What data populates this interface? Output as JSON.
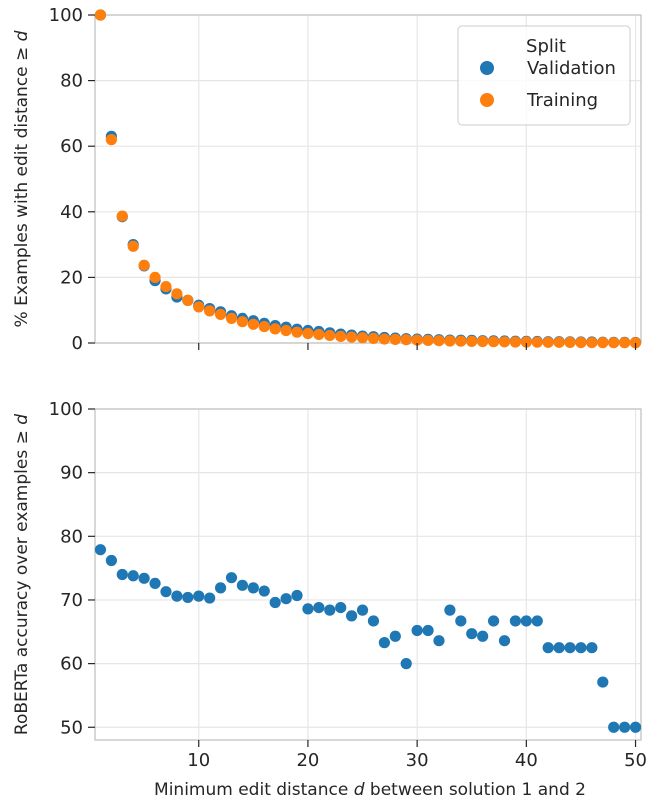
{
  "chart_data": [
    {
      "type": "scatter",
      "ylabel": "% Examples with edit distance  ≥ d",
      "xlim": [
        0.5,
        50.5
      ],
      "ylim": [
        0,
        100
      ],
      "yticks": [
        0,
        20,
        40,
        60,
        80,
        100
      ],
      "xticks": [
        10,
        20,
        30,
        40,
        50
      ],
      "grid": true,
      "legend": {
        "title": "Split",
        "placement": "top-right",
        "entries": [
          "Validation",
          "Training"
        ]
      },
      "series": [
        {
          "name": "Validation",
          "color": "#1f77b4",
          "x": [
            1,
            2,
            3,
            4,
            5,
            6,
            7,
            8,
            9,
            10,
            11,
            12,
            13,
            14,
            15,
            16,
            17,
            18,
            19,
            20,
            21,
            22,
            23,
            24,
            25,
            26,
            27,
            28,
            29,
            30,
            31,
            32,
            33,
            34,
            35,
            36,
            37,
            38,
            39,
            40,
            41,
            42,
            43,
            44,
            45,
            46,
            47,
            48,
            49,
            50
          ],
          "y": [
            100,
            63,
            38.5,
            30,
            23.5,
            19,
            16.5,
            14,
            13,
            11.5,
            10.5,
            9.5,
            8.3,
            7.5,
            6.8,
            6,
            5.3,
            4.8,
            4.2,
            3.8,
            3.5,
            3.1,
            2.7,
            2.4,
            2.1,
            1.9,
            1.7,
            1.5,
            1.3,
            1.2,
            1.1,
            1.0,
            0.9,
            0.85,
            0.8,
            0.7,
            0.65,
            0.6,
            0.55,
            0.5,
            0.45,
            0.4,
            0.4,
            0.35,
            0.3,
            0.3,
            0.25,
            0.2,
            0.2,
            0.15
          ]
        },
        {
          "name": "Training",
          "color": "#ff7f0e",
          "x": [
            1,
            2,
            3,
            4,
            5,
            6,
            7,
            8,
            9,
            10,
            11,
            12,
            13,
            14,
            15,
            16,
            17,
            18,
            19,
            20,
            21,
            22,
            23,
            24,
            25,
            26,
            27,
            28,
            29,
            30,
            31,
            32,
            33,
            34,
            35,
            36,
            37,
            38,
            39,
            40,
            41,
            42,
            43,
            44,
            45,
            46,
            47,
            48,
            49,
            50
          ],
          "y": [
            100,
            62,
            38.7,
            29.5,
            23.7,
            20,
            17.2,
            15,
            13,
            11,
            9.8,
            8.7,
            7.5,
            6.5,
            5.7,
            5,
            4.3,
            3.8,
            3.3,
            2.9,
            2.6,
            2.3,
            2.0,
            1.8,
            1.6,
            1.4,
            1.2,
            1.1,
            1.0,
            0.9,
            0.8,
            0.7,
            0.6,
            0.55,
            0.5,
            0.45,
            0.4,
            0.35,
            0.3,
            0.3,
            0.25,
            0.2,
            0.2,
            0.18,
            0.15,
            0.13,
            0.12,
            0.1,
            0.1,
            0.08
          ]
        }
      ]
    },
    {
      "type": "scatter",
      "xlabel": "Minimum edit distance d between solution 1 and 2",
      "ylabel": "RoBERTa accuracy over examples  ≥ d",
      "xlim": [
        0.5,
        50.5
      ],
      "ylim": [
        48,
        100
      ],
      "yticks": [
        50,
        60,
        70,
        80,
        90,
        100
      ],
      "xticks": [
        10,
        20,
        30,
        40,
        50
      ],
      "grid": true,
      "series": [
        {
          "color": "#1f77b4",
          "x": [
            1,
            2,
            3,
            4,
            5,
            6,
            7,
            8,
            9,
            10,
            11,
            12,
            13,
            14,
            15,
            16,
            17,
            18,
            19,
            20,
            21,
            22,
            23,
            24,
            25,
            26,
            27,
            28,
            29,
            30,
            31,
            32,
            33,
            34,
            35,
            36,
            37,
            38,
            39,
            40,
            41,
            42,
            43,
            44,
            45,
            46,
            47,
            48,
            49,
            50
          ],
          "y": [
            77.9,
            76.2,
            74,
            73.8,
            73.4,
            72.6,
            71.3,
            70.6,
            70.4,
            70.6,
            70.3,
            71.9,
            73.5,
            72.3,
            71.9,
            71.4,
            69.6,
            70.2,
            70.7,
            68.6,
            68.8,
            68.4,
            68.8,
            67.5,
            68.4,
            66.7,
            63.3,
            64.3,
            60.0,
            65.2,
            65.2,
            63.6,
            68.4,
            66.7,
            64.7,
            64.3,
            66.7,
            63.6,
            66.7,
            66.7,
            66.7,
            62.5,
            62.5,
            62.5,
            62.5,
            62.5,
            57.1,
            50,
            50,
            50
          ]
        }
      ]
    }
  ]
}
